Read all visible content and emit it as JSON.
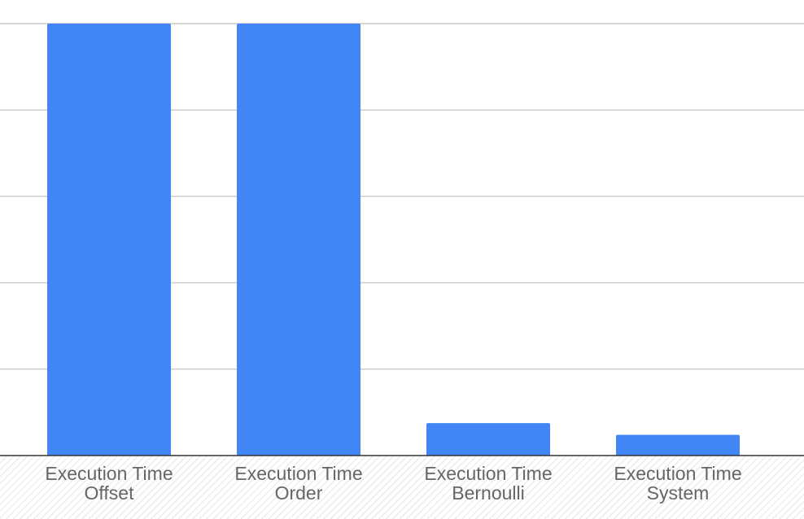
{
  "chart_data": {
    "type": "bar",
    "categories": [
      [
        "Execution Time",
        "Offset"
      ],
      [
        "Execution Time",
        "Order"
      ],
      [
        "Execution Time",
        "Bernoulli"
      ],
      [
        "Execution Time",
        "System"
      ]
    ],
    "values": [
      100,
      100,
      7.5,
      4.8
    ],
    "ylim": [
      0,
      100
    ],
    "gridline_count": 5,
    "grid": true,
    "legend": "none",
    "title": "",
    "xlabel": "",
    "ylabel": "",
    "colors": {
      "bar": "#4285f4",
      "grid": "#cccccc",
      "baseline": "#333333",
      "label": "#666666",
      "axis_band_hatch": "#dddddd"
    }
  }
}
